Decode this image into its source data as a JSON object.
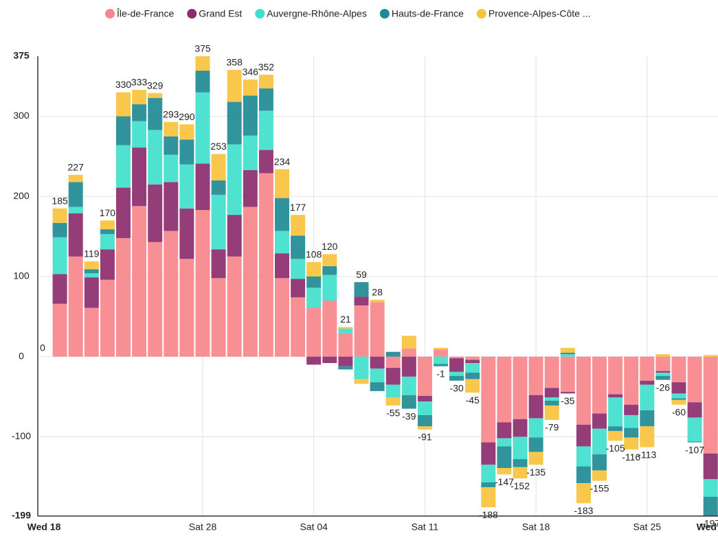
{
  "chart_data": {
    "type": "stacked-bar",
    "categories": [
      "Wed 18",
      null,
      null,
      null,
      null,
      null,
      null,
      null,
      null,
      null,
      "Sat 28",
      null,
      null,
      null,
      null,
      null,
      null,
      "Sat 04",
      null,
      null,
      null,
      null,
      null,
      null,
      "Sat 11",
      null,
      null,
      null,
      null,
      null,
      null,
      "Sat 18",
      null,
      null,
      null,
      null,
      null,
      null,
      "Sat 25",
      null,
      null,
      null,
      "Wed"
    ],
    "series": [
      {
        "name": "Île-de-France",
        "color": "#f7868c",
        "values": [
          0,
          66,
          125,
          61,
          96,
          148,
          188,
          143,
          157,
          122,
          183,
          98,
          125,
          187,
          229,
          98,
          74,
          61,
          70,
          29,
          64,
          68,
          -14,
          10,
          -49,
          9,
          -2,
          -4,
          -107,
          -82,
          -78,
          -48,
          -39,
          -44,
          -85,
          -71,
          -47,
          -60,
          -30,
          -18,
          -32,
          -57,
          -121
        ]
      },
      {
        "name": "Grand Est",
        "color": "#8c2c6e",
        "values": [
          0,
          37,
          54,
          38,
          38,
          63,
          73,
          72,
          61,
          63,
          58,
          36,
          52,
          46,
          29,
          31,
          23,
          -10,
          -8,
          -12,
          11,
          -15,
          -21,
          -25,
          -7,
          0,
          -17,
          -4,
          -28,
          -20,
          -22,
          -29,
          -12,
          -2,
          -27,
          -19,
          -4,
          -13,
          -5,
          -2,
          -14,
          -19,
          -32
        ]
      },
      {
        "name": "Auvergne-Rhône-Alpes",
        "color": "#40dfcd",
        "values": [
          0,
          46,
          8,
          5,
          19,
          53,
          33,
          68,
          34,
          55,
          89,
          68,
          88,
          43,
          49,
          28,
          25,
          25,
          32,
          6,
          -28,
          -17,
          -16,
          -23,
          -17,
          -9,
          -5,
          -12,
          -22,
          -10,
          -28,
          -24,
          -4,
          3,
          -25,
          -32,
          -36,
          -16,
          -32,
          -4,
          -6,
          -30,
          -22
        ]
      },
      {
        "name": "Hauts-de-France",
        "color": "#1f8a92",
        "values": [
          0,
          18,
          31,
          5,
          6,
          36,
          21,
          40,
          23,
          31,
          27,
          18,
          53,
          50,
          28,
          41,
          29,
          14,
          11,
          -4,
          18,
          -11,
          6,
          -17,
          -14,
          -3,
          -6,
          -8,
          -6,
          -27,
          -10,
          -18,
          -6,
          2,
          -21,
          -20,
          -6,
          -12,
          -20,
          -5,
          -2,
          -1,
          -24
        ]
      },
      {
        "name": "Provence-Alpes-Côte ...",
        "color": "#f9c23c",
        "values": [
          0,
          18,
          9,
          10,
          11,
          30,
          18,
          6,
          18,
          19,
          18,
          33,
          40,
          20,
          17,
          36,
          26,
          18,
          15,
          2,
          -6,
          3,
          -10,
          16,
          -4,
          2,
          0,
          -17,
          -25,
          -8,
          -14,
          -16,
          -18,
          6,
          -25,
          -13,
          -12,
          -15,
          -26,
          3,
          -6,
          0,
          2
        ]
      }
    ],
    "totals": [
      0,
      185,
      227,
      119,
      170,
      330,
      333,
      329,
      293,
      290,
      375,
      253,
      358,
      346,
      352,
      234,
      177,
      108,
      120,
      21,
      59,
      28,
      -55,
      -39,
      -91,
      -1,
      -30,
      -45,
      -188,
      -147,
      -152,
      -135,
      -79,
      -35,
      -183,
      -155,
      -105,
      -116,
      -113,
      -26,
      -60,
      -107,
      -197
    ],
    "ylim": [
      -199,
      375
    ],
    "yticks": [
      -199,
      -100,
      0,
      100,
      200,
      300,
      375
    ],
    "grid": true
  }
}
